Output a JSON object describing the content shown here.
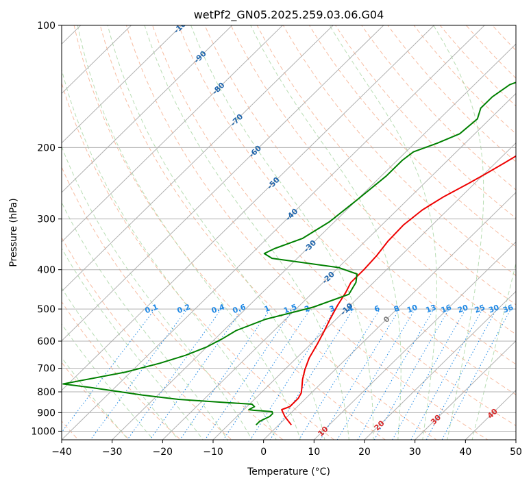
{
  "chart_data": {
    "type": "line",
    "subtype": "skew-T log-P diagram",
    "title": "wetPf2_GN05.2025.259.03.06.G04",
    "xlabel": "Temperature (°C)",
    "ylabel": "Pressure (hPa)",
    "xlim": [
      -40,
      50
    ],
    "ylim_pressure": [
      1050,
      100
    ],
    "y_scale": "log",
    "grid": true,
    "x_ticks": [
      "−40",
      "−30",
      "−20",
      "−10",
      "0",
      "10",
      "20",
      "30",
      "40",
      "50"
    ],
    "y_ticks": [
      {
        "p": 100,
        "label": "100"
      },
      {
        "p": 200,
        "label": "200"
      },
      {
        "p": 300,
        "label": "300"
      },
      {
        "p": 400,
        "label": "400"
      },
      {
        "p": 500,
        "label": "500"
      },
      {
        "p": 600,
        "label": "600"
      },
      {
        "p": 700,
        "label": "700"
      },
      {
        "p": 800,
        "label": "800"
      },
      {
        "p": 900,
        "label": "900"
      },
      {
        "p": 1000,
        "label": "1000"
      }
    ],
    "colors": {
      "temperature": "#ee0000",
      "dewpoint": "#008000",
      "isotherm": "#b0b0b0",
      "dry_adiabat": "#f4a582",
      "moist_adiabat": "#a6d5a0",
      "mixing_ratio": "#1e88e5",
      "isotherm_label": "#2166ac",
      "warm_label": "#d62728",
      "zero_label": "#808080"
    },
    "series": [
      {
        "name": "Temperature",
        "color": "#ee0000",
        "points": [
          [
            2.5,
            965
          ],
          [
            -0.5,
            920
          ],
          [
            -2.5,
            885
          ],
          [
            -1.5,
            870
          ],
          [
            -1.5,
            830
          ],
          [
            -2.0,
            805
          ],
          [
            -3.0,
            780
          ],
          [
            -4.5,
            745
          ],
          [
            -6.0,
            705
          ],
          [
            -7.5,
            660
          ],
          [
            -8.7,
            610
          ],
          [
            -10.0,
            565
          ],
          [
            -11.2,
            530
          ],
          [
            -12.5,
            490
          ],
          [
            -13.5,
            455
          ],
          [
            -14.5,
            430
          ],
          [
            -14.5,
            400
          ],
          [
            -14.8,
            370
          ],
          [
            -15.5,
            340
          ],
          [
            -15.7,
            310
          ],
          [
            -15.0,
            285
          ],
          [
            -13.5,
            265
          ],
          [
            -11.2,
            245
          ],
          [
            -9.5,
            230
          ],
          [
            -8.2,
            218
          ],
          [
            -6.8,
            205
          ],
          [
            -5.5,
            193
          ],
          [
            -3.5,
            180
          ],
          [
            0.0,
            165
          ],
          [
            6.0,
            147
          ],
          [
            13.0,
            133
          ],
          [
            22.0,
            120
          ],
          [
            30.0,
            112
          ],
          [
            40.0,
            103
          ],
          [
            42.0,
            100
          ]
        ]
      },
      {
        "name": "Dewpoint",
        "color": "#008000",
        "points": [
          [
            -4.5,
            965
          ],
          [
            -4.5,
            945
          ],
          [
            -3.5,
            920
          ],
          [
            -3.5,
            905
          ],
          [
            -4.0,
            895
          ],
          [
            -8.0,
            888
          ],
          [
            -9.0,
            885
          ],
          [
            -8.5,
            870
          ],
          [
            -9.5,
            858
          ],
          [
            -15.0,
            850
          ],
          [
            -25.0,
            835
          ],
          [
            -33.0,
            815
          ],
          [
            -45.0,
            780
          ],
          [
            -51.0,
            765
          ],
          [
            -41.0,
            715
          ],
          [
            -36.0,
            680
          ],
          [
            -32.5,
            650
          ],
          [
            -30.0,
            620
          ],
          [
            -28.5,
            590
          ],
          [
            -27.5,
            565
          ],
          [
            -24.0,
            530
          ],
          [
            -17.0,
            495
          ],
          [
            -12.5,
            460
          ],
          [
            -13.5,
            430
          ],
          [
            -15.0,
            410
          ],
          [
            -20.0,
            395
          ],
          [
            -35.0,
            375
          ],
          [
            -37.5,
            365
          ],
          [
            -36.5,
            355
          ],
          [
            -33.0,
            335
          ],
          [
            -31.0,
            305
          ],
          [
            -30.0,
            270
          ],
          [
            -29.0,
            235
          ],
          [
            -29.0,
            215
          ],
          [
            -28.5,
            205
          ],
          [
            -25.5,
            195
          ],
          [
            -23.0,
            185
          ],
          [
            -22.5,
            170
          ],
          [
            -24.0,
            160
          ],
          [
            -24.0,
            150
          ],
          [
            -23.0,
            140
          ],
          [
            -20.0,
            133
          ],
          [
            -13.0,
            128
          ],
          [
            -8.0,
            123
          ],
          [
            -5.0,
            115
          ],
          [
            -2.0,
            108
          ],
          [
            -2.0,
            100
          ]
        ]
      }
    ],
    "isotherm_labels": [
      {
        "t": -100,
        "text": "-100"
      },
      {
        "t": -90,
        "text": "-90"
      },
      {
        "t": -80,
        "text": "-80"
      },
      {
        "t": -70,
        "text": "-70"
      },
      {
        "t": -60,
        "text": "-60"
      },
      {
        "t": -50,
        "text": "-50"
      },
      {
        "t": -40,
        "text": "-40"
      },
      {
        "t": -30,
        "text": "-30"
      },
      {
        "t": -20,
        "text": "-20"
      },
      {
        "t": -10,
        "text": "-10"
      },
      {
        "t": 0,
        "text": "0"
      },
      {
        "t": 10,
        "text": "10"
      },
      {
        "t": 20,
        "text": "20"
      },
      {
        "t": 30,
        "text": "30"
      },
      {
        "t": 40,
        "text": "40"
      }
    ],
    "mixing_ratio_labels": [
      {
        "w": 0.1,
        "text": "0.1"
      },
      {
        "w": 0.2,
        "text": "0.2"
      },
      {
        "w": 0.4,
        "text": "0.4"
      },
      {
        "w": 0.6,
        "text": "0.6"
      },
      {
        "w": 1,
        "text": "1"
      },
      {
        "w": 1.5,
        "text": "1.5"
      },
      {
        "w": 2,
        "text": "2"
      },
      {
        "w": 3,
        "text": "3"
      },
      {
        "w": 4,
        "text": "4"
      },
      {
        "w": 6,
        "text": "6"
      },
      {
        "w": 8,
        "text": "8"
      },
      {
        "w": 10,
        "text": "10"
      },
      {
        "w": 13,
        "text": "13"
      },
      {
        "w": 16,
        "text": "16"
      },
      {
        "w": 20,
        "text": "20"
      },
      {
        "w": 25,
        "text": "25"
      },
      {
        "w": 30,
        "text": "30"
      },
      {
        "w": 36,
        "text": "36"
      }
    ]
  }
}
